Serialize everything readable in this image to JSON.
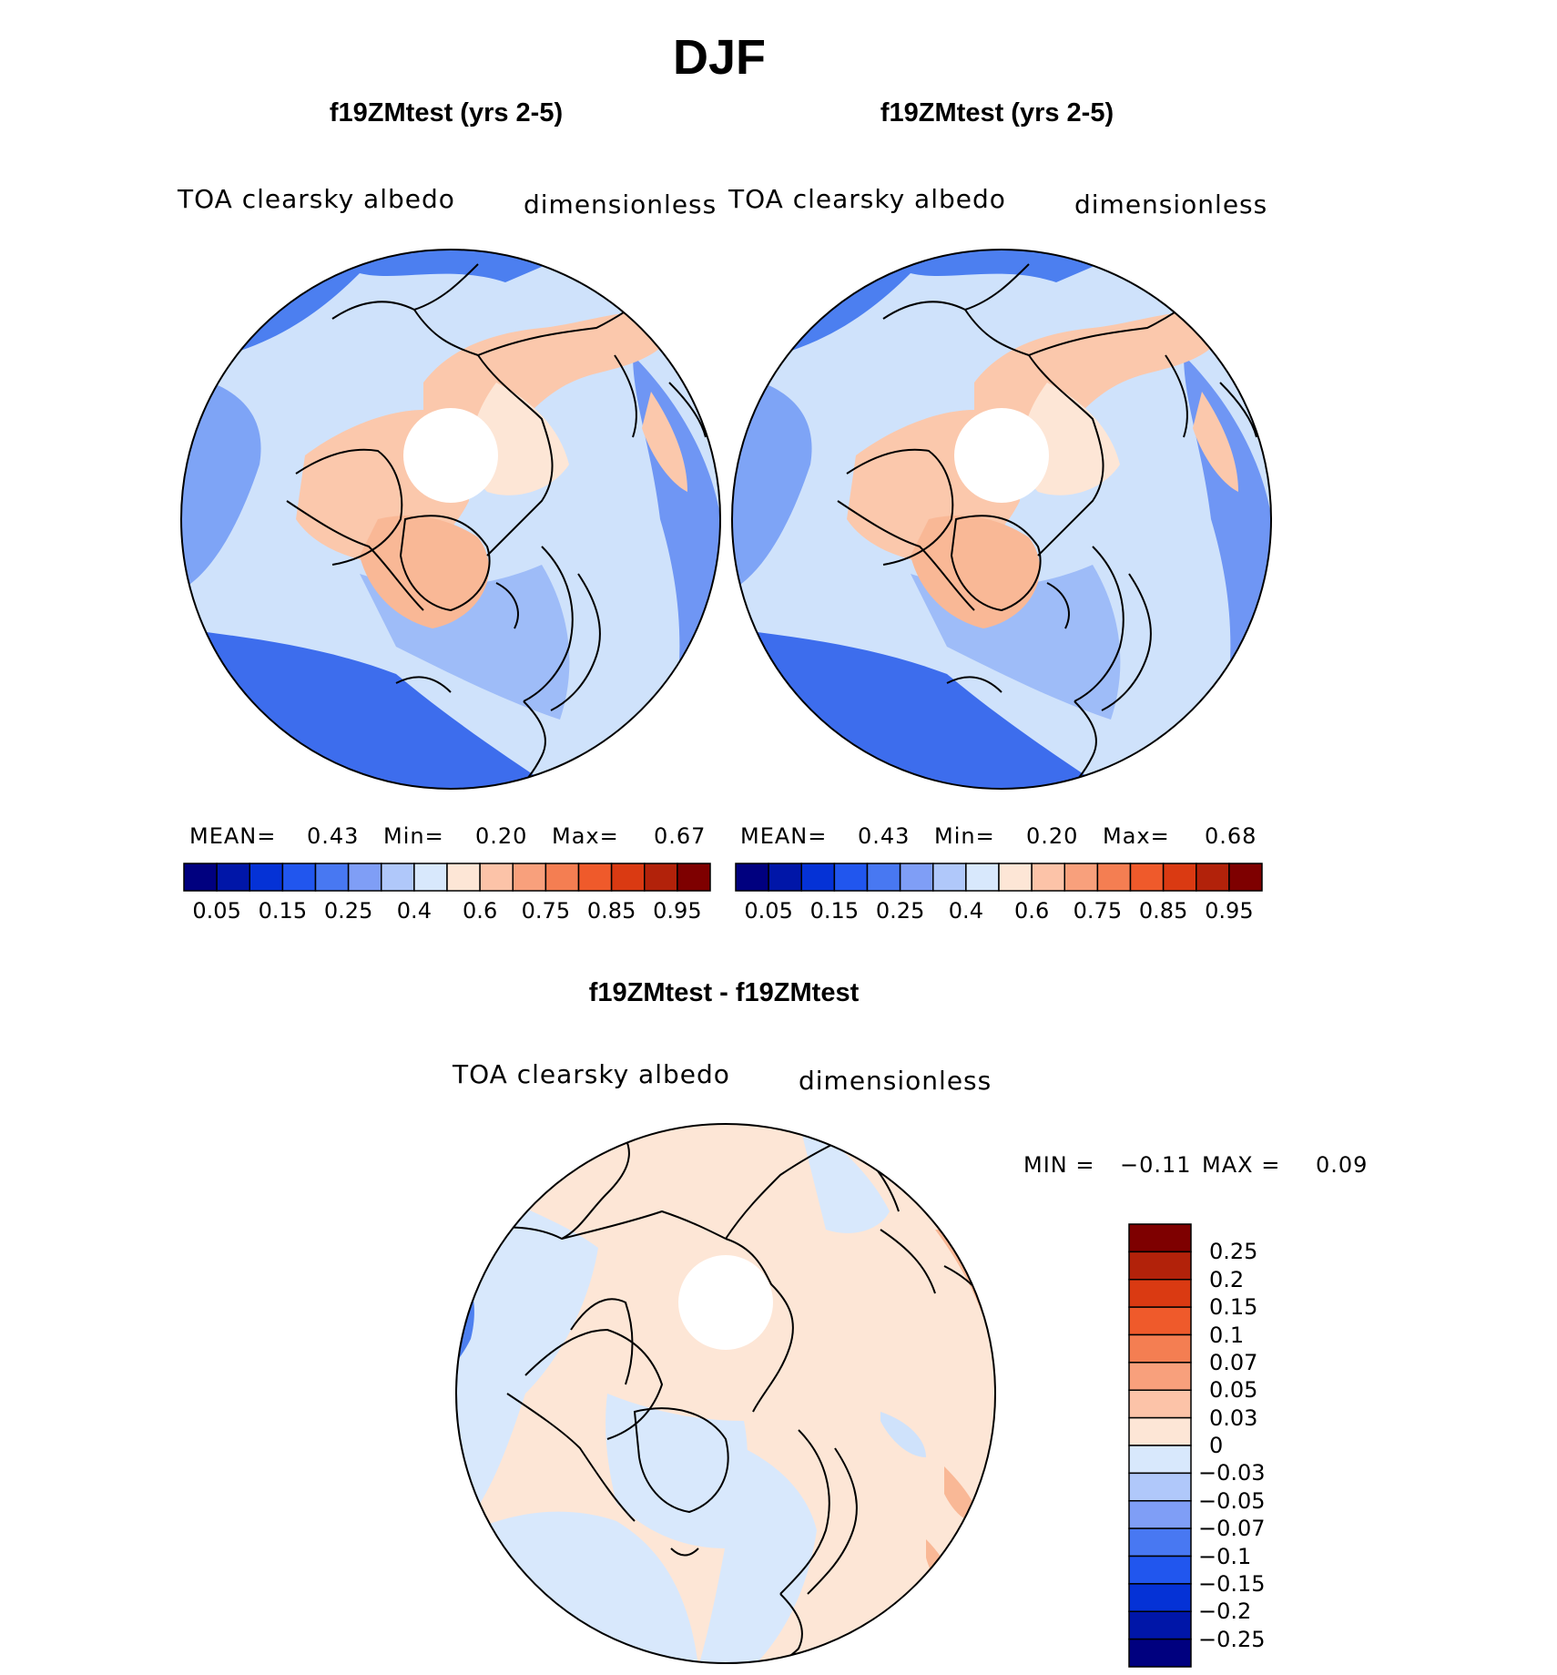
{
  "title": "DJF",
  "panels": [
    {
      "id": "left",
      "header": "f19ZMtest (yrs 2-5)",
      "variable": "TOA clearsky albedo",
      "units": "dimensionless",
      "stats": {
        "mean_label": "MEAN=",
        "mean": "0.43",
        "min_label": "Min=",
        "min": "0.20",
        "max_label": "Max=",
        "max": "0.67"
      },
      "colorbar_labels": [
        "0.05",
        "0.15",
        "0.25",
        "0.4",
        "0.6",
        "0.75",
        "0.85",
        "0.95"
      ]
    },
    {
      "id": "right",
      "header": "f19ZMtest (yrs 2-5)",
      "variable": "TOA clearsky albedo",
      "units": "dimensionless",
      "stats": {
        "mean_label": "MEAN=",
        "mean": "0.43",
        "min_label": "Min=",
        "min": "0.20",
        "max_label": "Max=",
        "max": "0.68"
      },
      "colorbar_labels": [
        "0.05",
        "0.15",
        "0.25",
        "0.4",
        "0.6",
        "0.75",
        "0.85",
        "0.95"
      ]
    },
    {
      "id": "diff",
      "header": "f19ZMtest - f19ZMtest",
      "variable": "TOA clearsky albedo",
      "units": "dimensionless",
      "stats": {
        "min_label": "MIN =",
        "min": "−0.11",
        "max_label": "MAX =",
        "max": "0.09"
      },
      "colorbar_labels": [
        "0.25",
        "0.2",
        "0.15",
        "0.1",
        "0.07",
        "0.05",
        "0.03",
        "0",
        "−0.03",
        "−0.05",
        "−0.07",
        "−0.1",
        "−0.15",
        "−0.2",
        "−0.25"
      ]
    }
  ],
  "colors": {
    "abs_scale": [
      "#00007f",
      "#0016a8",
      "#0532d6",
      "#2156ee",
      "#4878f2",
      "#7f9ef6",
      "#b0c8fa",
      "#d8e8fc",
      "#fde6d6",
      "#fcc3a8",
      "#f8a07c",
      "#f47e52",
      "#ef5a2b",
      "#da3a12",
      "#b2220a",
      "#7e0000"
    ],
    "diff_scale": [
      "#00007f",
      "#0016a8",
      "#0532d6",
      "#2156ee",
      "#4878f2",
      "#7f9ef6",
      "#b0c8fa",
      "#d8e8fc",
      "#fde6d6",
      "#fcc3a8",
      "#f8a07c",
      "#f47e52",
      "#ef5a2b",
      "#da3a12",
      "#b2220a",
      "#7e0000"
    ],
    "land_tone": "#fbc8ac",
    "ocean_tone": "#5a86ee",
    "mid_tone": "#cfe2fb"
  }
}
